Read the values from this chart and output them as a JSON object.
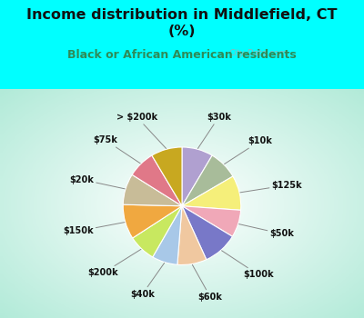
{
  "title": "Income distribution in Middlefield, CT\n(%)",
  "subtitle": "Black or African American residents",
  "title_color": "#111111",
  "subtitle_color": "#2e8b57",
  "background_cyan": "#00ffff",
  "labels": [
    "$30k",
    "$10k",
    "$125k",
    "$50k",
    "$100k",
    "$60k",
    "$40k",
    "$200k",
    "$150k",
    "$20k",
    "$75k",
    "> $200k"
  ],
  "values": [
    8.5,
    8.0,
    9.5,
    7.5,
    9.5,
    8.0,
    7.0,
    7.5,
    9.5,
    8.5,
    7.5,
    8.5
  ],
  "colors": [
    "#b0a0d0",
    "#a8bc9a",
    "#f5ef7a",
    "#f0a8b8",
    "#7878c8",
    "#f0c8a0",
    "#a8c8e8",
    "#c8e860",
    "#f0a840",
    "#c8bc98",
    "#e07888",
    "#c8a820"
  ],
  "watermark": "City-Data.com",
  "figsize": [
    4.0,
    3.5
  ],
  "dpi": 100
}
